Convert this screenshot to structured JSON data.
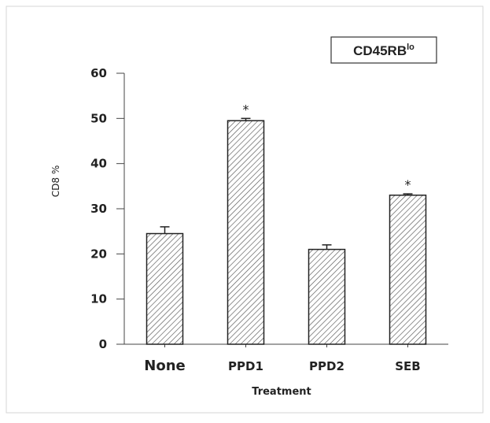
{
  "chart_data": {
    "type": "bar",
    "legend_box": {
      "main": "CD45RB",
      "sup": "lo"
    },
    "ylabel": "CD8 %",
    "xlabel": "Treatment",
    "ylim": [
      0,
      60
    ],
    "yticks": [
      "0",
      "10",
      "20",
      "30",
      "40",
      "50",
      "60"
    ],
    "categories": [
      "None",
      "PPD1",
      "PPD2",
      "SEB"
    ],
    "values": [
      24.5,
      49.5,
      21,
      33
    ],
    "errors": [
      1.5,
      0.5,
      1,
      0.3
    ],
    "significance": [
      "",
      "*",
      "",
      "*"
    ],
    "grid": false,
    "bar_fill": "diagonal-hatch"
  }
}
